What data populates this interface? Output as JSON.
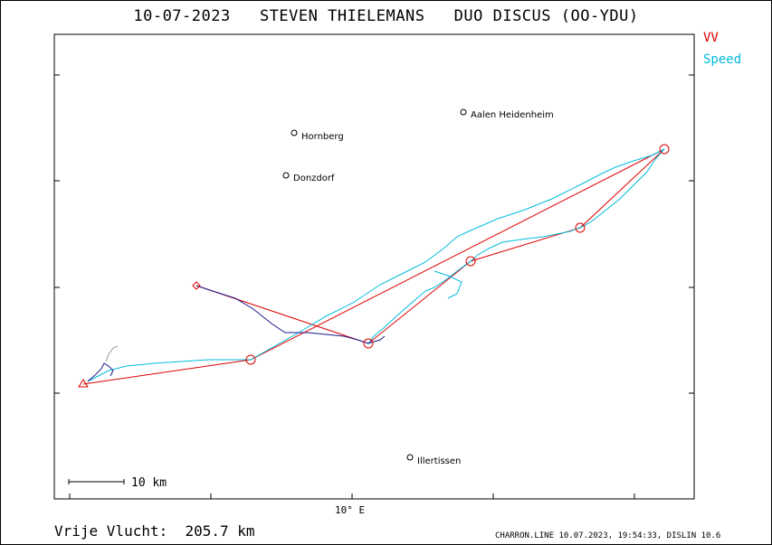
{
  "title": {
    "date": "10-07-2023",
    "pilot": "STEVEN THIELEMANS",
    "glider": "DUO DISCUS (OO-YDU)"
  },
  "legend": {
    "vv": "VV",
    "speed": "Speed",
    "vv_color": "#dd0000",
    "speed_color": "#00bbdd"
  },
  "axis": {
    "x_tick_label": "10° E"
  },
  "scale_bar": {
    "label": "10 km"
  },
  "towns": [
    {
      "name": "Aalen Heidenheim"
    },
    {
      "name": "Hornberg"
    },
    {
      "name": "Donzdorf"
    },
    {
      "name": "Illertissen"
    }
  ],
  "footer": {
    "distance_label": "Vrije Vlucht:",
    "distance_value": "205.7 km",
    "credit": "CHARRON.LINE 10.07.2023, 19:54:33, DISLIN 10.6"
  },
  "colors": {
    "task_line": "#dd0000",
    "track_speed": "#00bbdd",
    "track_climb": "#1a1a8c",
    "frame": "#000000"
  }
}
